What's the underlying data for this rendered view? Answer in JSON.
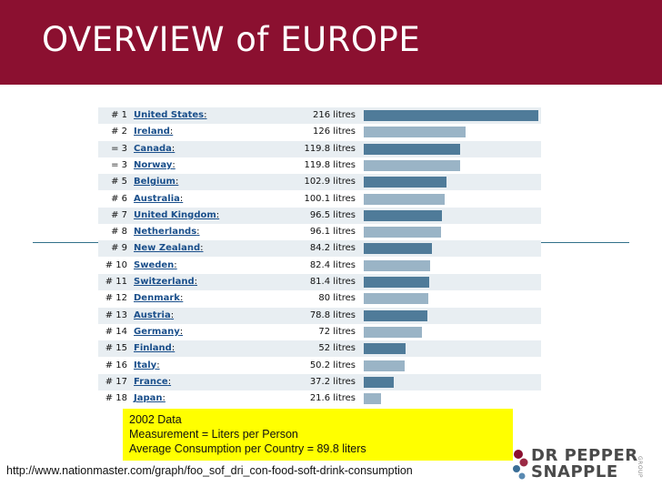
{
  "slide": {
    "title": "OVERVIEW of EUROPE",
    "header_color": "#8b1030",
    "source_url": "http://www.nationmaster.com/graph/foo_sof_dri_con-food-soft-drink-consumption"
  },
  "note": {
    "line1": "2002 Data",
    "line2": "Measurement = Liters per Person",
    "line3": "Average Consumption per Country = 89.8 liters",
    "background": "#ffff00"
  },
  "logo": {
    "line1": "DR PEPPER",
    "line2": "SNAPPLE",
    "tag": "GROUP"
  },
  "chart_data": {
    "type": "bar",
    "orientation": "horizontal",
    "bar_colors": {
      "dark": "#4f7b99",
      "light": "#9ab4c6"
    },
    "rows": [
      {
        "rank": "# 1",
        "country": "United States",
        "label": "216 litres",
        "value": 216
      },
      {
        "rank": "# 2",
        "country": "Ireland",
        "label": "126 litres",
        "value": 126
      },
      {
        "rank": "= 3",
        "country": "Canada",
        "label": "119.8 litres",
        "value": 119.8
      },
      {
        "rank": "= 3",
        "country": "Norway",
        "label": "119.8 litres",
        "value": 119.8
      },
      {
        "rank": "# 5",
        "country": "Belgium",
        "label": "102.9 litres",
        "value": 102.9
      },
      {
        "rank": "# 6",
        "country": "Australia",
        "label": "100.1 litres",
        "value": 100.1
      },
      {
        "rank": "# 7",
        "country": "United Kingdom",
        "label": "96.5 litres",
        "value": 96.5
      },
      {
        "rank": "# 8",
        "country": "Netherlands",
        "label": "96.1 litres",
        "value": 96.1
      },
      {
        "rank": "# 9",
        "country": "New Zealand",
        "label": "84.2 litres",
        "value": 84.2
      },
      {
        "rank": "# 10",
        "country": "Sweden",
        "label": "82.4 litres",
        "value": 82.4
      },
      {
        "rank": "# 11",
        "country": "Switzerland",
        "label": "81.4 litres",
        "value": 81.4
      },
      {
        "rank": "# 12",
        "country": "Denmark",
        "label": "80 litres",
        "value": 80
      },
      {
        "rank": "# 13",
        "country": "Austria",
        "label": "78.8 litres",
        "value": 78.8
      },
      {
        "rank": "# 14",
        "country": "Germany",
        "label": "72 litres",
        "value": 72
      },
      {
        "rank": "# 15",
        "country": "Finland",
        "label": "52 litres",
        "value": 52
      },
      {
        "rank": "# 16",
        "country": "Italy",
        "label": "50.2 litres",
        "value": 50.2
      },
      {
        "rank": "# 17",
        "country": "France",
        "label": "37.2 litres",
        "value": 37.2
      },
      {
        "rank": "# 18",
        "country": "Japan",
        "label": "21.6 litres",
        "value": 21.6
      }
    ],
    "xlim": [
      0,
      216
    ]
  }
}
